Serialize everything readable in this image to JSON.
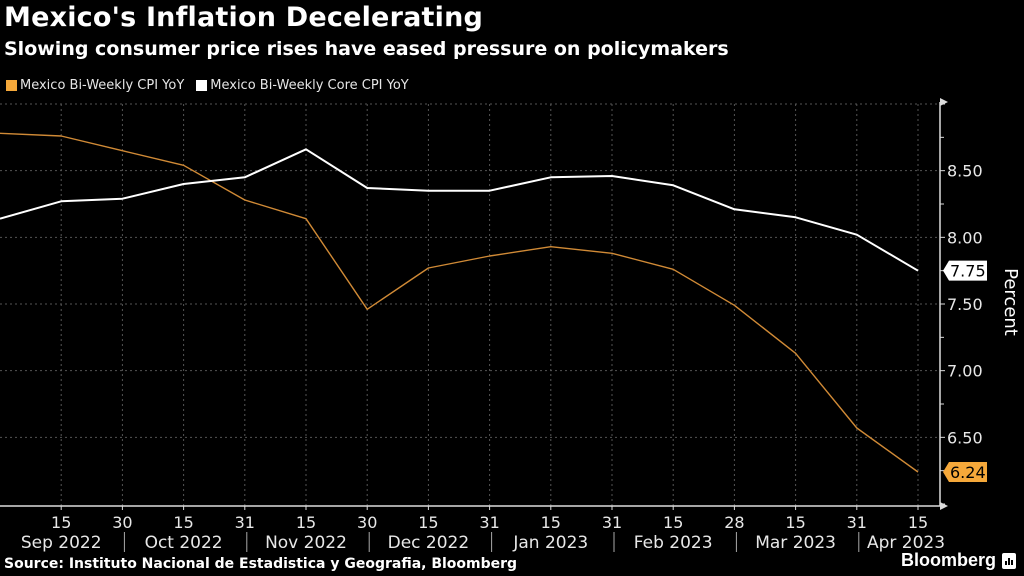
{
  "header": {
    "title": "Mexico's Inflation Decelerating",
    "subtitle": "Slowing consumer price rises have eased pressure on policymakers"
  },
  "footer": {
    "source": "Source: Instituto Nacional de Estadistica y Geografia, Bloomberg",
    "brand": "Bloomberg"
  },
  "colors": {
    "background": "#000000",
    "cpi": "#f5a83a",
    "cpi_line": "#d08a36",
    "core": "#ffffff",
    "grid": "#555555"
  },
  "chart_data": {
    "type": "line",
    "title": "Mexico's Inflation Decelerating",
    "subtitle": "Slowing consumer price rises have eased pressure on policymakers",
    "ylabel": "Percent",
    "xlabel": "",
    "ylim": [
      6.0,
      9.0
    ],
    "yticks": [
      6.5,
      7.0,
      7.5,
      8.0,
      8.5
    ],
    "ytick_labels": [
      "6.50",
      "7.00",
      "7.50",
      "8.00",
      "8.50"
    ],
    "y_axis_side": "right",
    "grid": true,
    "legend_position": "top-left",
    "x": [
      "2022-08-31",
      "2022-09-15",
      "2022-09-30",
      "2022-10-15",
      "2022-10-31",
      "2022-11-15",
      "2022-11-30",
      "2022-12-15",
      "2022-12-31",
      "2023-01-15",
      "2023-01-31",
      "2023-02-15",
      "2023-02-28",
      "2023-03-15",
      "2023-03-31",
      "2023-04-15"
    ],
    "x_tick_labels": [
      "15",
      "30",
      "15",
      "31",
      "15",
      "30",
      "15",
      "31",
      "15",
      "31",
      "15",
      "28",
      "15",
      "31",
      "15"
    ],
    "x_month_labels": [
      "Sep 2022",
      "Oct 2022",
      "Nov 2022",
      "Dec 2022",
      "Jan 2023",
      "Feb 2023",
      "Mar 2023",
      "Apr 2023"
    ],
    "series": [
      {
        "name": "Mexico Bi-Weekly CPI YoY",
        "color": "#f5a83a",
        "values": [
          8.78,
          8.76,
          8.65,
          8.54,
          8.28,
          8.14,
          7.46,
          7.77,
          7.86,
          7.93,
          7.88,
          7.76,
          7.49,
          7.13,
          6.57,
          6.24
        ],
        "last_value_label": "6.24"
      },
      {
        "name": "Mexico Bi-Weekly Core CPI YoY",
        "color": "#ffffff",
        "values": [
          8.14,
          8.27,
          8.29,
          8.4,
          8.45,
          8.66,
          8.37,
          8.35,
          8.35,
          8.45,
          8.46,
          8.39,
          8.21,
          8.15,
          8.02,
          7.75
        ],
        "last_value_label": "7.75"
      }
    ]
  }
}
